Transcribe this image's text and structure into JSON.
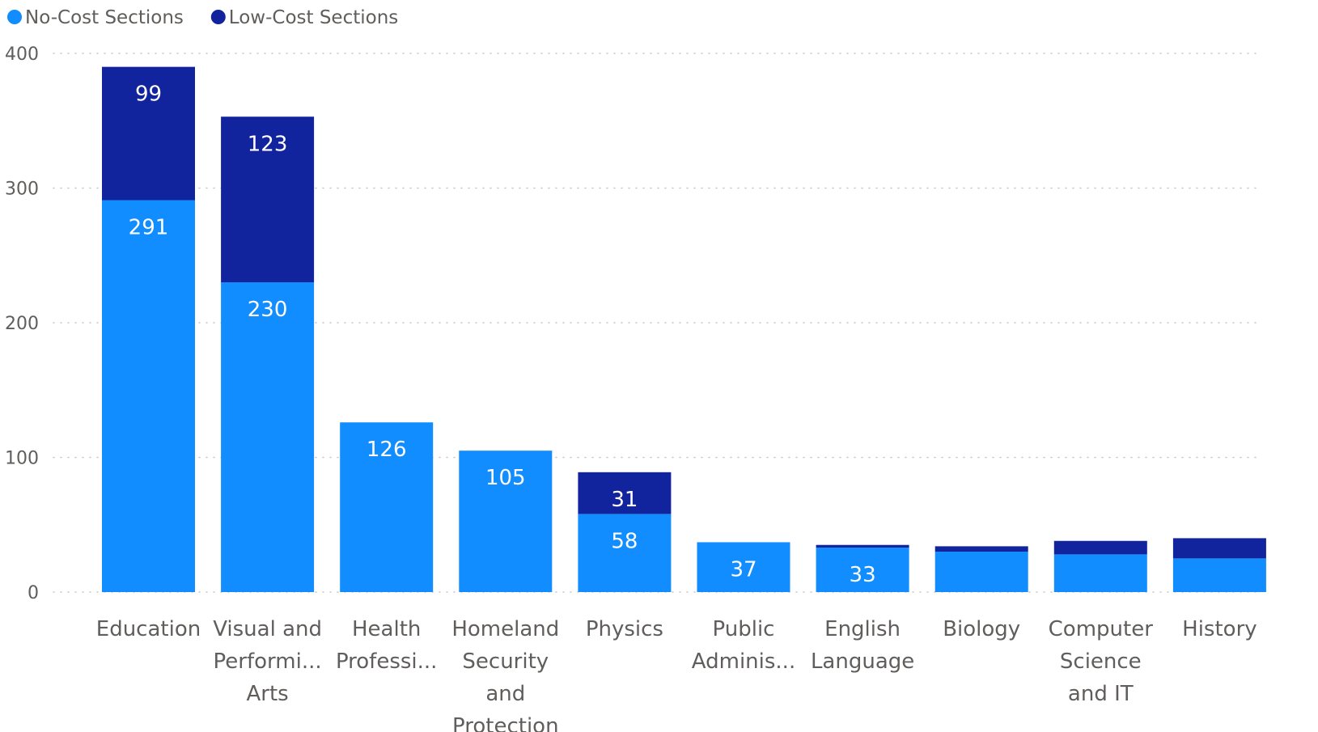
{
  "chart_data": {
    "type": "bar",
    "stacked": true,
    "categories": [
      "Education",
      "Visual and Performing Arts",
      "Health Professions",
      "Homeland Security and Protection",
      "Physics",
      "Public Administration",
      "English Language",
      "Biology",
      "Computer Science and IT",
      "History"
    ],
    "category_tick_labels": [
      [
        "Education"
      ],
      [
        "Visual and",
        "Performi...",
        "Arts"
      ],
      [
        "Health",
        "Professi..."
      ],
      [
        "Homeland",
        "Security",
        "and",
        "Protection"
      ],
      [
        "Physics"
      ],
      [
        "Public",
        "Adminis..."
      ],
      [
        "English",
        "Language"
      ],
      [
        "Biology"
      ],
      [
        "Computer",
        "Science",
        "and IT"
      ],
      [
        "History"
      ]
    ],
    "series": [
      {
        "name": "No-Cost Sections",
        "color": "#118DFF",
        "values": [
          291,
          230,
          126,
          105,
          58,
          37,
          33,
          30,
          28,
          25
        ],
        "labels_shown": [
          true,
          true,
          true,
          true,
          true,
          true,
          true,
          false,
          false,
          false
        ]
      },
      {
        "name": "Low-Cost Sections",
        "color": "#12239E",
        "values": [
          99,
          123,
          0,
          0,
          31,
          0,
          2,
          4,
          10,
          15
        ],
        "labels_shown": [
          true,
          true,
          false,
          false,
          true,
          false,
          false,
          false,
          false,
          false
        ]
      }
    ],
    "ylim": [
      0,
      400
    ],
    "yticks": [
      0,
      100,
      200,
      300,
      400
    ],
    "grid": true,
    "legend_position": "top-left",
    "title": "",
    "xlabel": "",
    "ylabel": ""
  }
}
